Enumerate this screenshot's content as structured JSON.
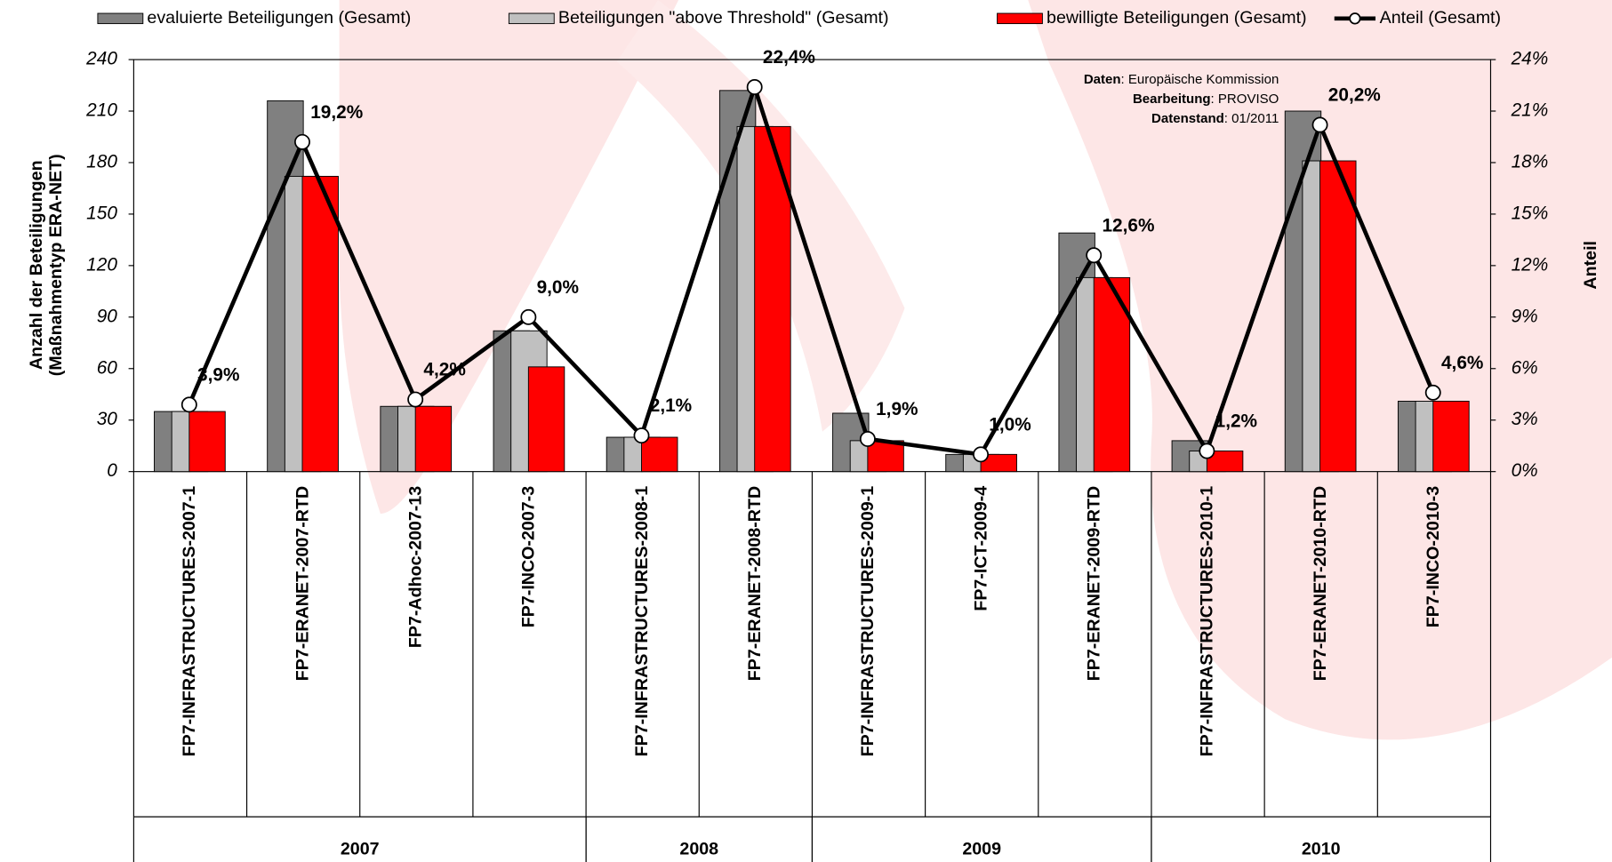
{
  "chart_data": {
    "type": "bar",
    "categories": [
      "FP7-INFRASTRUCTURES-2007-1",
      "FP7-ERANET-2007-RTD",
      "FP7-Adhoc-2007-13",
      "FP7-INCO-2007-3",
      "FP7-INFRASTRUCTURES-2008-1",
      "FP7-ERANET-2008-RTD",
      "FP7-INFRASTRUCTURES-2009-1",
      "FP7-ICT-2009-4",
      "FP7-ERANET-2009-RTD",
      "FP7-INFRASTRUCTURES-2010-1",
      "FP7-ERANET-2010-RTD",
      "FP7-INCO-2010-3"
    ],
    "groups": [
      "2007",
      "2008",
      "2009",
      "2010"
    ],
    "series": [
      {
        "name": "evaluierte Beteiligungen (Gesamt)",
        "color": "#808080",
        "values": [
          35,
          216,
          38,
          82,
          20,
          222,
          34,
          10,
          139,
          18,
          210,
          41
        ]
      },
      {
        "name": "Beteiligungen \"above Threshold\" (Gesamt)",
        "color": "#c0c0c0",
        "values": [
          35,
          172,
          38,
          82,
          20,
          201,
          18,
          10,
          113,
          12,
          181,
          41
        ]
      },
      {
        "name": "bewilligte Beteiligungen (Gesamt)",
        "color": "#ff0000",
        "values": [
          35,
          172,
          38,
          61,
          20,
          201,
          18,
          10,
          113,
          12,
          181,
          41
        ]
      },
      {
        "name": "Anteil (Gesamt)",
        "color": "#000000",
        "type": "line",
        "axis": "y2",
        "values": [
          3.9,
          19.2,
          4.2,
          9.0,
          2.1,
          22.4,
          1.9,
          1.0,
          12.6,
          1.2,
          20.2,
          4.6
        ],
        "value_labels": [
          "3,9%",
          "19,2%",
          "4,2%",
          "9,0%",
          "2,1%",
          "22,4%",
          "1,9%",
          "1,0%",
          "12,6%",
          "1,2%",
          "20,2%",
          "4,6%"
        ]
      }
    ],
    "y_label": [
      "Anzahl der  Beteiligungen",
      "(Maßnahmentyp ERA-NET)"
    ],
    "y2_label": "Anteil",
    "ylim": [
      0,
      240
    ],
    "yticks": [
      0,
      30,
      60,
      90,
      120,
      150,
      180,
      210,
      240
    ],
    "y2lim": [
      0,
      24
    ],
    "y2ticks": [
      {
        "value": 0,
        "label": "0%"
      },
      {
        "value": 3,
        "label": "3%"
      },
      {
        "value": 6,
        "label": "6%"
      },
      {
        "value": 9,
        "label": "9%"
      },
      {
        "value": 12,
        "label": "12%"
      },
      {
        "value": 15,
        "label": "15%"
      },
      {
        "value": 18,
        "label": "18%"
      },
      {
        "value": 21,
        "label": "21%"
      },
      {
        "value": 24,
        "label": "24%"
      }
    ],
    "legend": "top",
    "grid": false,
    "annotation": [
      {
        "key": "Daten",
        "value": ": Europäische Kommission"
      },
      {
        "key": "Bearbeitung",
        "value": ": PROVISO"
      },
      {
        "key": "Datenstand",
        "value": ": 01/2011"
      }
    ]
  }
}
